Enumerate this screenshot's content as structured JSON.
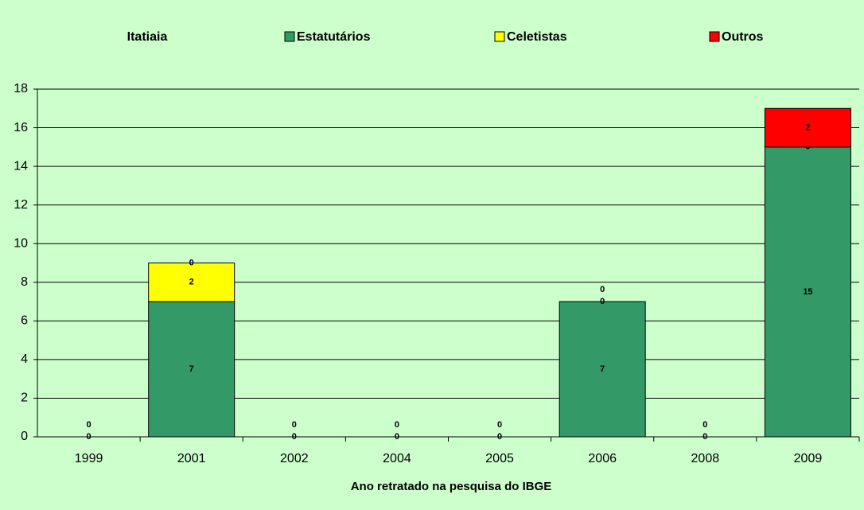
{
  "chart_data": {
    "type": "stacked_bar",
    "title": "Itatiaia",
    "x_label": "Ano retratado na pesquisa do IBGE",
    "categories": [
      "1999",
      "2001",
      "2002",
      "2004",
      "2005",
      "2006",
      "2008",
      "2009"
    ],
    "series": [
      {
        "name": "Estatutários",
        "color": "#339966",
        "values": [
          null,
          7,
          null,
          null,
          null,
          7,
          null,
          15
        ]
      },
      {
        "name": "Celetistas",
        "color": "#ffff00",
        "values": [
          0,
          2,
          0,
          0,
          0,
          0,
          0,
          0
        ]
      },
      {
        "name": "Outros",
        "color": "#ff0000",
        "values": [
          0,
          0,
          0,
          0,
          0,
          0,
          0,
          2
        ]
      }
    ],
    "ylim": [
      0,
      18
    ],
    "yticks": [
      0,
      2,
      4,
      6,
      8,
      10,
      12,
      14,
      16,
      18
    ],
    "grid": true
  }
}
